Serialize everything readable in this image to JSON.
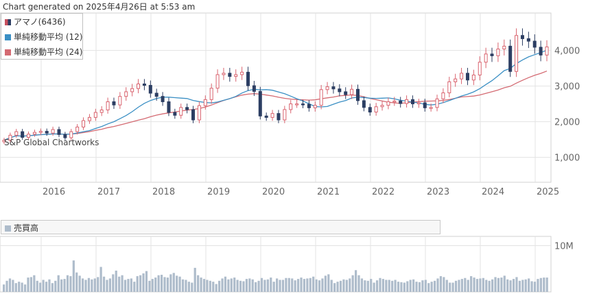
{
  "header": {
    "generated": "Chart generated on 2025年4月26日 at 5:53 am"
  },
  "watermark": "S&P Global Chartworks",
  "legend": [
    {
      "label": "アマノ(6436)",
      "color": "#c9505e",
      "color2": "#2c3e63"
    },
    {
      "label": "単純移動平均 (12)",
      "color": "#3a8fc4"
    },
    {
      "label": "単純移動平均 (24)",
      "color": "#d46a72"
    }
  ],
  "volume_legend": {
    "label": "売買高",
    "color": "#aebccb"
  },
  "colors": {
    "up": "#d9636e",
    "down": "#2c3e63",
    "sma12": "#3a8fc4",
    "sma24": "#d46a72",
    "volume": "#aebccb",
    "grid": "#e3e3e3"
  },
  "chart_data": [
    {
      "type": "candlestick",
      "title": "アマノ(6436)",
      "x_ticks": [
        "2016",
        "2017",
        "2018",
        "2019",
        "2020",
        "2021",
        "2022",
        "2023",
        "2024",
        "2025"
      ],
      "y_ticks": [
        "1,000",
        "2,000",
        "3,000",
        "4,000"
      ],
      "ylim": [
        300,
        5050
      ],
      "grid": true,
      "legend_position": "top-left",
      "close_values": [
        1480,
        1620,
        1720,
        1560,
        1650,
        1700,
        1730,
        1680,
        1780,
        1640,
        1550,
        1720,
        1850,
        2030,
        2120,
        2260,
        2330,
        2560,
        2470,
        2710,
        2840,
        2930,
        3060,
        3020,
        2800,
        2710,
        2560,
        2260,
        2180,
        2400,
        2340,
        2050,
        2450,
        2620,
        2940,
        3320,
        3360,
        3270,
        3320,
        3390,
        3010,
        2850,
        2160,
        2120,
        2230,
        2050,
        2340,
        2500,
        2500,
        2490,
        2390,
        2460,
        2900,
        2980,
        2920,
        2840,
        2760,
        2910,
        2590,
        2400,
        2270,
        2420,
        2460,
        2560,
        2580,
        2510,
        2620,
        2500,
        2530,
        2390,
        2400,
        2640,
        2810,
        3120,
        3200,
        3360,
        3170,
        3310,
        3670,
        3900,
        3850,
        4040,
        4120,
        3410,
        4420,
        4330,
        4260,
        4090,
        3870,
        4100
      ],
      "series": [
        {
          "name": "単純移動平均 (12)"
        },
        {
          "name": "単純移動平均 (24)"
        }
      ]
    },
    {
      "type": "bar",
      "title": "売買高",
      "y_ticks": [
        "10M"
      ],
      "ylim": [
        0,
        12
      ],
      "values": [
        1.6,
        2.4,
        2.9,
        2.6,
        1.9,
        2.2,
        2.0,
        1.6,
        3.1,
        3.2,
        3.6,
        2.4,
        2.0,
        2.6,
        2.2,
        2.7,
        1.9,
        2.4,
        3.6,
        2.7,
        2.8,
        3.6,
        3.4,
        6.8,
        4.2,
        3.5,
        2.9,
        2.6,
        3.0,
        2.7,
        2.9,
        3.2,
        5.4,
        3.3,
        2.6,
        2.9,
        3.8,
        4.6,
        3.3,
        3.6,
        2.6,
        2.8,
        2.9,
        2.2,
        3.4,
        3.6,
        4.0,
        4.5,
        2.4,
        2.8,
        3.1,
        3.6,
        3.7,
        3.2,
        3.1,
        3.8,
        4.1,
        3.5,
        3.3,
        2.7,
        2.6,
        2.2,
        2.0,
        5.2,
        3.6,
        3.1,
        2.8,
        2.6,
        2.4,
        2.2,
        1.7,
        2.4,
        2.9,
        3.3,
        2.7,
        2.9,
        3.1,
        2.6,
        2.4,
        2.3,
        2.8,
        2.9,
        2.7,
        2.1,
        2.4,
        3.0,
        2.6,
        2.7,
        3.1,
        2.2,
        2.9,
        2.6,
        2.6,
        3.0,
        3.0,
        2.9,
        2.5,
        2.8,
        3.1,
        2.8,
        2.9,
        3.0,
        3.3,
        2.7,
        2.5,
        2.9,
        3.5,
        3.8,
        2.6,
        1.9,
        2.2,
        2.4,
        2.7,
        2.6,
        2.9,
        3.6,
        4.7,
        3.6,
        2.9,
        2.5,
        2.4,
        2.8,
        2.0,
        2.5,
        3.0,
        2.8,
        2.6,
        2.6,
        2.4,
        2.6,
        2.2,
        2.1,
        2.0,
        2.3,
        2.6,
        2.7,
        2.2,
        2.1,
        2.5,
        2.6,
        1.9,
        2.2,
        2.4,
        2.9,
        3.4,
        3.2,
        2.6,
        2.0,
        2.0,
        2.4,
        2.6,
        2.8,
        3.0,
        2.6,
        3.4,
        3.1,
        2.8,
        2.9,
        3.0,
        2.6,
        2.4,
        2.7,
        3.2,
        3.0,
        3.1,
        3.5,
        2.7,
        2.5,
        2.8,
        3.2,
        2.4,
        2.6,
        2.7,
        2.9,
        2.3,
        2.2,
        2.8,
        3.0,
        3.1,
        3.1
      ]
    }
  ]
}
